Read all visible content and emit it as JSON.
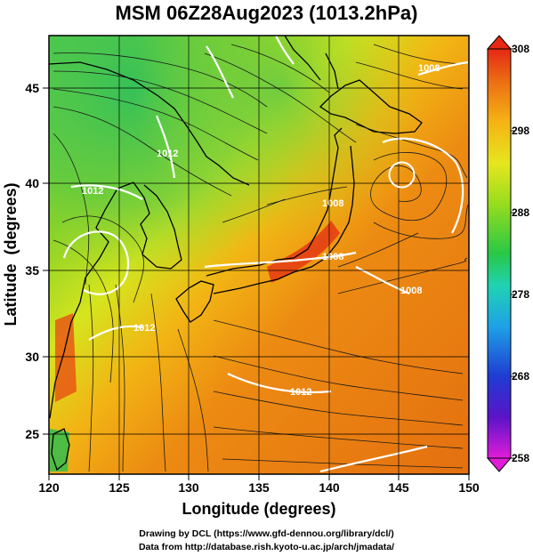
{
  "title": "MSM 06Z28Aug2023 (1013.2hPa)",
  "map": {
    "x_axis": {
      "label": "Longitude (degrees)",
      "ticks": [
        "120",
        "125",
        "130",
        "135",
        "140",
        "145",
        "150"
      ],
      "range": [
        120,
        150
      ]
    },
    "y_axis": {
      "label": "Latitude  (degrees)",
      "ticks": [
        "25",
        "30",
        "35",
        "40",
        "45"
      ],
      "range": [
        22.4,
        47.6
      ]
    },
    "contour_labels": [
      "1012",
      "1012",
      "1008",
      "1008",
      "1012",
      "1008",
      "1012",
      "1008"
    ],
    "low_center": {
      "lon": 145.2,
      "lat": 39.6
    },
    "field": "temperature (K)",
    "colors": {
      "cold": "#3cc85a",
      "mid": "#e8e81e",
      "warm": "#ec7d10",
      "hot": "#d82010"
    }
  },
  "colorbar": {
    "labels": [
      "308",
      "298",
      "288",
      "278",
      "268",
      "258"
    ],
    "range": [
      258,
      308
    ],
    "stops": [
      "#e01cd8",
      "#5a14c8",
      "#1e3cd2",
      "#1ea0e6",
      "#20d2b4",
      "#28c846",
      "#96dc1e",
      "#e6e61e",
      "#f5b414",
      "#ec6e14",
      "#e62814"
    ]
  },
  "credits": {
    "line1": "Drawing by DCL (https://www.gfd-dennou.org/library/dcl/)",
    "line2": "Data from http://database.rish.kyoto-u.ac.jp/arch/jmadata/"
  }
}
